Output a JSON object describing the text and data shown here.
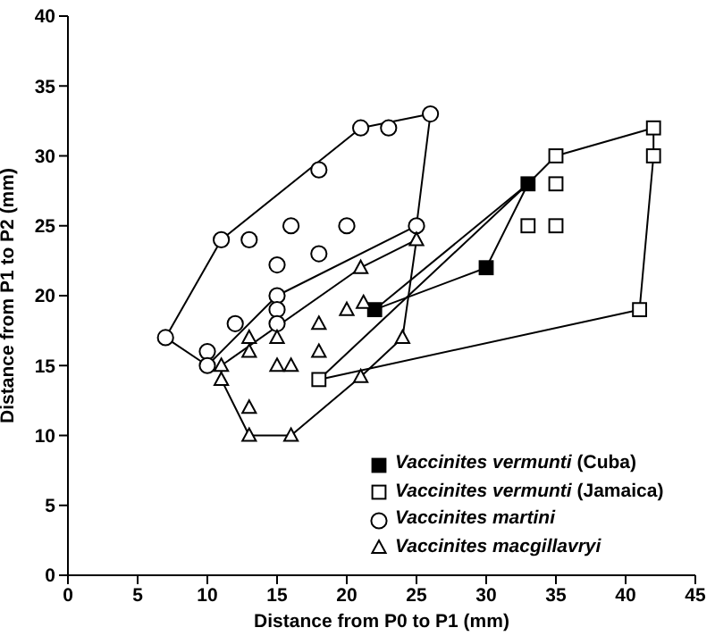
{
  "chart_data": {
    "type": "scatter",
    "xlabel": "Distance from P0 to P1 (mm)",
    "ylabel": "Distance from P1 to P2 (mm)",
    "xlim": [
      0,
      45
    ],
    "xticks": [
      0,
      5,
      10,
      15,
      20,
      25,
      30,
      35,
      40,
      45
    ],
    "ylim": [
      0,
      40
    ],
    "yticks": [
      0,
      5,
      10,
      15,
      20,
      25,
      30,
      35,
      40
    ],
    "legend": "bottom right",
    "series": [
      {
        "type": "line",
        "color": "#000000",
        "marker": "none",
        "line_style": "solid",
        "x": [
          7,
          11,
          21,
          26
        ],
        "values": [
          17,
          24,
          32,
          33
        ]
      },
      {
        "type": "line",
        "color": "#000000",
        "marker": "none",
        "line_style": "solid",
        "x": [
          26,
          25,
          15,
          10,
          7
        ],
        "values": [
          33,
          25,
          20,
          15,
          17
        ]
      },
      {
        "type": "line",
        "color": "#000000",
        "marker": "none",
        "line_style": "solid",
        "x": [
          11,
          21,
          25
        ],
        "values": [
          15,
          22,
          24
        ]
      },
      {
        "type": "line",
        "color": "#000000",
        "marker": "none",
        "line_style": "solid",
        "x": [
          25,
          24,
          21,
          16,
          13,
          11,
          11
        ],
        "values": [
          24,
          17,
          14.2,
          10,
          10,
          14,
          15
        ]
      },
      {
        "type": "line",
        "color": "#000000",
        "marker": "none",
        "line_style": "solid",
        "x": [
          18,
          33,
          35,
          42
        ],
        "values": [
          14,
          28,
          30,
          32
        ]
      },
      {
        "type": "line",
        "color": "#000000",
        "marker": "none",
        "line_style": "solid",
        "x": [
          42,
          42,
          41,
          18
        ],
        "values": [
          32,
          30,
          19,
          14
        ]
      },
      {
        "type": "line",
        "color": "#000000",
        "marker": "none",
        "line_style": "solid",
        "x": [
          22,
          33
        ],
        "values": [
          19,
          28
        ]
      },
      {
        "type": "line",
        "color": "#000000",
        "marker": "none",
        "line_style": "solid",
        "x": [
          33,
          30,
          22
        ],
        "values": [
          28,
          22,
          19
        ]
      },
      {
        "name": "Vaccinites vermunti (Cuba)",
        "color": "#000000",
        "marker": "square",
        "x": [
          22,
          30,
          33
        ],
        "values": [
          19,
          22,
          28
        ]
      },
      {
        "name": "Vaccinites vermunti (Jamaica)",
        "color": "#000000",
        "marker": "square-open",
        "x": [
          18,
          33,
          35,
          35,
          35,
          42,
          42,
          41
        ],
        "values": [
          14,
          25,
          25,
          28,
          30,
          32,
          30,
          19
        ]
      },
      {
        "name": "Vaccinites martini",
        "color": "#000000",
        "marker": "circle-open",
        "x": [
          7,
          10,
          10,
          11,
          12,
          13,
          15,
          15,
          15,
          15,
          16,
          18,
          18,
          20,
          21,
          23,
          26,
          25
        ],
        "values": [
          17,
          16,
          15,
          24,
          18,
          24,
          22.2,
          20,
          19,
          18,
          25,
          29,
          23,
          25,
          32,
          32,
          33,
          25
        ]
      },
      {
        "name": "Vaccinites macgillavryi",
        "color": "#000000",
        "marker": "triangle-open",
        "x": [
          11,
          11,
          13,
          13,
          13,
          13,
          15,
          15,
          16,
          16,
          18,
          18,
          20,
          21,
          21.2,
          21,
          25,
          24
        ],
        "values": [
          15,
          14,
          17,
          16,
          12,
          10,
          17,
          15,
          15,
          10,
          18,
          16,
          19,
          22,
          19.5,
          14.2,
          24,
          17
        ]
      }
    ]
  }
}
